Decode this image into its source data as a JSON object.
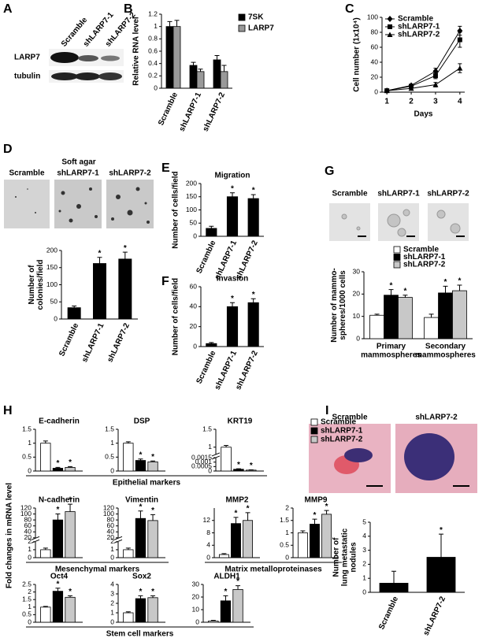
{
  "figure": {
    "letters": [
      "A",
      "B",
      "C",
      "D",
      "E",
      "F",
      "G",
      "H",
      "I"
    ],
    "blot_lanes": [
      "Scramble",
      "shLARP7-1",
      "shLARP7-2"
    ],
    "blot_rows": [
      "LARP7",
      "tubulin"
    ],
    "soft_agar_title": "Soft agar",
    "soft_agar_labels": [
      "Scramble",
      "shLARP7-1",
      "shLARP7-2"
    ],
    "mammosphere_labels": [
      "Scramble",
      "shLARP7-1",
      "shLARP7-2"
    ],
    "lung_labels": [
      "Scramble",
      "shLARP7-2"
    ]
  },
  "chart_data": [
    {
      "type": "bar",
      "ylabel": "Relative RNA level",
      "categories": [
        "Scramble",
        "shLARP7-1",
        "shLARP7-2"
      ],
      "series": [
        {
          "name": "7SK",
          "color": "#000000",
          "values": [
            1.0,
            0.37,
            0.46
          ],
          "errors": [
            0.08,
            0.05,
            0.07
          ]
        },
        {
          "name": "LARP7",
          "color": "#999999",
          "values": [
            1.0,
            0.27,
            0.27
          ],
          "errors": [
            0.1,
            0.04,
            0.1
          ]
        }
      ],
      "ylim": [
        0,
        1.2
      ],
      "yticks": [
        0,
        0.2,
        0.4,
        0.6,
        0.8,
        1,
        1.2
      ],
      "legend": "right"
    },
    {
      "type": "line",
      "ylabel": "Cell number (1x10⁴)",
      "xlabel": "Days",
      "x": [
        1,
        2,
        3,
        4
      ],
      "series": [
        {
          "name": "Scramble",
          "color": "#000000",
          "marker": "diamond",
          "values": [
            2,
            9,
            28,
            82
          ],
          "errors": [
            0.3,
            1,
            4,
            6
          ]
        },
        {
          "name": "shLARP7-1",
          "color": "#000000",
          "marker": "square",
          "values": [
            2,
            8,
            22,
            70
          ],
          "errors": [
            0.3,
            1,
            4,
            10
          ]
        },
        {
          "name": "shLARP7-2",
          "color": "#000000",
          "marker": "triangle",
          "values": [
            2,
            5,
            10,
            32
          ],
          "errors": [
            0.3,
            1,
            3,
            6
          ]
        }
      ],
      "xlim": [
        0.8,
        4.2
      ],
      "xticks": [
        1,
        2,
        3,
        4
      ],
      "ylim": [
        0,
        100
      ],
      "yticks": [
        0,
        20,
        40,
        60,
        80,
        100
      ],
      "legend": "upper left"
    },
    {
      "type": "bar",
      "ylabel": [
        "Number of",
        "colonies/field"
      ],
      "categories": [
        "Scramble",
        "shLARP7-1",
        "shLARP7-2"
      ],
      "values": [
        33,
        162,
        175
      ],
      "errors": [
        5,
        18,
        20
      ],
      "annotations": [
        null,
        "*",
        "*"
      ],
      "color": "#000000",
      "ylim": [
        0,
        200
      ],
      "yticks": [
        0,
        50,
        100,
        150,
        200
      ]
    },
    {
      "type": "bar",
      "title": "Migration",
      "ylabel": "Number of cells/field",
      "categories": [
        "Scramble",
        "shLARP7-1",
        "shLARP7-2"
      ],
      "values": [
        30,
        150,
        143
      ],
      "errors": [
        8,
        15,
        15
      ],
      "annotations": [
        null,
        "*",
        "*"
      ],
      "color": "#000000",
      "ylim": [
        0,
        200
      ],
      "yticks": [
        0,
        50,
        100,
        150,
        200
      ]
    },
    {
      "type": "bar",
      "title": "Invasion",
      "ylabel": "Number of cells/field",
      "categories": [
        "Scramble",
        "shLARP7-1",
        "shLARP7-2"
      ],
      "values": [
        3,
        40,
        44
      ],
      "errors": [
        1,
        4,
        4
      ],
      "annotations": [
        null,
        "*",
        "*"
      ],
      "color": "#000000",
      "ylim": [
        0,
        60
      ],
      "yticks": [
        0,
        20,
        40,
        60
      ]
    },
    {
      "type": "bar",
      "ylabel": [
        "Number of mammo-",
        "spheres/1000 cells"
      ],
      "categories": [
        [
          "Primary",
          "mammospheres"
        ],
        [
          "Secondary",
          "mammospheres"
        ]
      ],
      "series": [
        {
          "name": "Scramble",
          "color": "#ffffff",
          "values": [
            10.5,
            9.5
          ],
          "errors": [
            0.5,
            1.5
          ],
          "annotations": [
            null,
            null
          ]
        },
        {
          "name": "shLARP7-1",
          "color": "#000000",
          "values": [
            19.5,
            20.5
          ],
          "errors": [
            2.5,
            3
          ],
          "annotations": [
            "*",
            "*"
          ]
        },
        {
          "name": "shLARP7-2",
          "color": "#c8c8c8",
          "values": [
            18.5,
            21.5
          ],
          "errors": [
            1,
            2.5
          ],
          "annotations": [
            "*",
            "*"
          ]
        }
      ],
      "ylim": [
        0,
        30
      ],
      "yticks": [
        0,
        10,
        20,
        30
      ],
      "legend": "top"
    },
    {
      "type": "bar-panels",
      "ylabel": "Fold changes in mRNA level",
      "legend": "upper right",
      "series": [
        {
          "name": "Scramble",
          "color": "#ffffff"
        },
        {
          "name": "shLARP7-1",
          "color": "#000000"
        },
        {
          "name": "shLARP7-2",
          "color": "#c8c8c8"
        }
      ],
      "groups": [
        {
          "label": "Epithelial markers",
          "plots": [
            {
              "title": "E-cadherin",
              "values": [
                1.0,
                0.1,
                0.13
              ],
              "errors": [
                0.08,
                0.03,
                0.03
              ],
              "annotations": [
                null,
                "*",
                "*"
              ],
              "ylim": [
                0,
                1.5
              ],
              "yticks": [
                0,
                0.5,
                1,
                1.5
              ]
            },
            {
              "title": "DSP",
              "values": [
                1.0,
                0.38,
                0.33
              ],
              "errors": [
                0.05,
                0.05,
                0.03
              ],
              "annotations": [
                null,
                "*",
                "*"
              ],
              "ylim": [
                0,
                1.5
              ],
              "yticks": [
                0,
                0.5,
                1,
                1.5
              ]
            },
            {
              "title": "KRT19",
              "values": [
                1.0,
                0.0002,
                0.0001
              ],
              "errors": [
                0.05,
                5e-05,
                3e-05
              ],
              "annotations": [
                null,
                "*",
                "*"
              ],
              "segments": [
                {
                  "ylim": [
                    0,
                    0.0015
                  ],
                  "yticks": [
                    0,
                    0.0005,
                    0.001,
                    0.0015
                  ]
                },
                {
                  "ylim": [
                    0.8,
                    1.5
                  ],
                  "yticks": [
                    1,
                    1.5
                  ]
                }
              ]
            }
          ]
        },
        {
          "label": "Mesenchymal markers",
          "plots": [
            {
              "title": "N-cadherin",
              "values": [
                1,
                80,
                108
              ],
              "errors": [
                0.2,
                20,
                25
              ],
              "annotations": [
                null,
                "*",
                "*"
              ],
              "segments": [
                {
                  "ylim": [
                    0,
                    2
                  ],
                  "yticks": [
                    0,
                    1,
                    2
                  ]
                },
                {
                  "ylim": [
                    20,
                    120
                  ],
                  "yticks": [
                    20,
                    40,
                    60,
                    80,
                    100,
                    120
                  ]
                }
              ]
            },
            {
              "title": "Vimentin",
              "values": [
                1,
                85,
                78
              ],
              "errors": [
                0.2,
                25,
                20
              ],
              "annotations": [
                null,
                "*",
                "*"
              ],
              "segments": [
                {
                  "ylim": [
                    0,
                    2
                  ],
                  "yticks": [
                    0,
                    1,
                    2
                  ]
                },
                {
                  "ylim": [
                    20,
                    120
                  ],
                  "yticks": [
                    20,
                    40,
                    60,
                    80,
                    100,
                    120
                  ]
                }
              ]
            }
          ]
        },
        {
          "label": "Matrix metalloproteinases",
          "plots": [
            {
              "title": "MMP2",
              "values": [
                1,
                11,
                12
              ],
              "errors": [
                0.3,
                2,
                2.5
              ],
              "annotations": [
                null,
                "*",
                "*"
              ],
              "ylim": [
                0,
                16
              ],
              "yticks": [
                0,
                4,
                8,
                12
              ]
            },
            {
              "title": "MMP9",
              "values": [
                1,
                1.35,
                1.75
              ],
              "errors": [
                0.08,
                0.2,
                0.15
              ],
              "annotations": [
                null,
                "*",
                "*"
              ],
              "ylim": [
                0,
                2
              ],
              "yticks": [
                0,
                0.5,
                1,
                1.5,
                2
              ]
            }
          ]
        },
        {
          "label": "Stem cell markers",
          "plots": [
            {
              "title": "Oct4",
              "values": [
                1,
                2.05,
                1.65
              ],
              "errors": [
                0.05,
                0.2,
                0.1
              ],
              "annotations": [
                null,
                "*",
                "*"
              ],
              "ylim": [
                0,
                2.5
              ],
              "yticks": [
                0,
                0.5,
                1,
                1.5,
                2,
                2.5
              ]
            },
            {
              "title": "Sox2",
              "values": [
                1,
                2.5,
                2.6
              ],
              "errors": [
                0.1,
                0.3,
                0.2
              ],
              "annotations": [
                null,
                "*",
                "*"
              ],
              "ylim": [
                0,
                4
              ],
              "yticks": [
                0,
                1,
                2,
                3,
                4
              ]
            },
            {
              "title": "ALDH1",
              "values": [
                1,
                17,
                26
              ],
              "errors": [
                0.5,
                4,
                3
              ],
              "annotations": [
                null,
                "*",
                "*"
              ],
              "ylim": [
                0,
                30
              ],
              "yticks": [
                0,
                10,
                20,
                30
              ]
            }
          ]
        }
      ]
    },
    {
      "type": "bar",
      "ylabel": [
        "Number of",
        "lung metastatic",
        "nodules"
      ],
      "categories": [
        "Scramble",
        "shLARP7-2"
      ],
      "values": [
        0.65,
        2.5
      ],
      "errors": [
        0.85,
        1.65
      ],
      "annotations": [
        null,
        "*"
      ],
      "color": "#000000",
      "ylim": [
        0,
        5
      ],
      "yticks": [
        0,
        1,
        2,
        3,
        4,
        5
      ]
    }
  ]
}
